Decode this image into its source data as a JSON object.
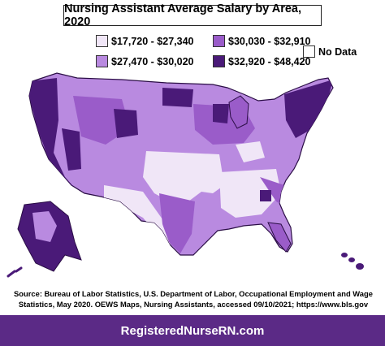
{
  "title": "Nursing Assistant Average Salary by Area, 2020",
  "legend": [
    {
      "label": "$17,720 - $27,340",
      "color": "#f0e6f7"
    },
    {
      "label": "$30,030 - $32,910",
      "color": "#9a5cc9"
    },
    {
      "label": "$27,470 - $30,020",
      "color": "#b98ae0"
    },
    {
      "label": "$32,920 - $48,420",
      "color": "#4a1a78"
    },
    {
      "label": "No Data",
      "color": "#ffffff"
    }
  ],
  "source": "Source: Bureau of Labor Statistics, U.S. Department of Labor, Occupational Employment and Wage Statistics, May 2020. OEWS Maps, Nursing Assistants, accessed 09/10/2021; https://www.bls.gov",
  "footer": "RegisteredNurseRN.com",
  "colors": {
    "lowest": "#f0e6f7",
    "low": "#b98ae0",
    "mid": "#9a5cc9",
    "high": "#4a1a78",
    "footer_bg": "#5b2a86"
  }
}
